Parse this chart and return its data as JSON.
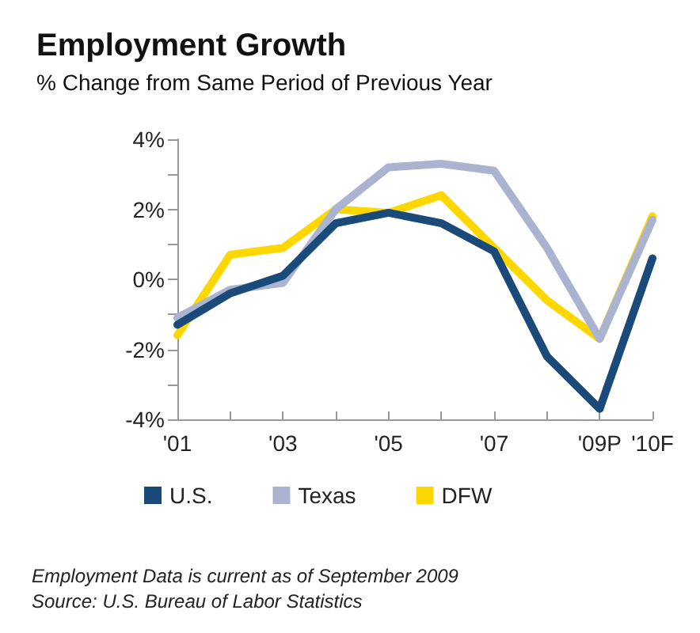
{
  "chart_data": {
    "type": "line",
    "title": "Employment Growth",
    "subtitle": "% Change from Same Period of Previous Year",
    "categories": [
      "'01",
      null,
      "'03",
      null,
      "'05",
      null,
      "'07",
      null,
      "'09P",
      "'10F"
    ],
    "series": [
      {
        "name": "U.S.",
        "color": "#1a4a7a",
        "values": [
          -1.3,
          -0.4,
          0.1,
          1.6,
          1.9,
          1.6,
          0.8,
          -2.2,
          -3.7,
          0.6
        ]
      },
      {
        "name": "Texas",
        "color": "#aab4d0",
        "values": [
          -1.1,
          -0.3,
          -0.1,
          2.0,
          3.2,
          3.3,
          3.1,
          0.9,
          -1.7,
          1.7
        ]
      },
      {
        "name": "DFW",
        "color": "#ffd700",
        "values": [
          -1.6,
          0.7,
          0.9,
          2.0,
          1.9,
          2.4,
          0.9,
          -0.6,
          -1.7,
          1.8
        ]
      }
    ],
    "ylim": [
      -4,
      4
    ],
    "yticks": [
      {
        "value": -4,
        "label": "-4%"
      },
      {
        "value": -3,
        "label": null
      },
      {
        "value": -2,
        "label": "-2%"
      },
      {
        "value": -1,
        "label": null
      },
      {
        "value": 0,
        "label": "0%"
      },
      {
        "value": 1,
        "label": null
      },
      {
        "value": 2,
        "label": "2%"
      },
      {
        "value": 3,
        "label": null
      },
      {
        "value": 4,
        "label": "4%"
      }
    ],
    "grid": false,
    "legend": "bottom",
    "marker": "none",
    "line_style": "solid",
    "annotations": [
      "Employment Data is current as of September 2009",
      "Source: U.S. Bureau of Labor Statistics"
    ]
  }
}
